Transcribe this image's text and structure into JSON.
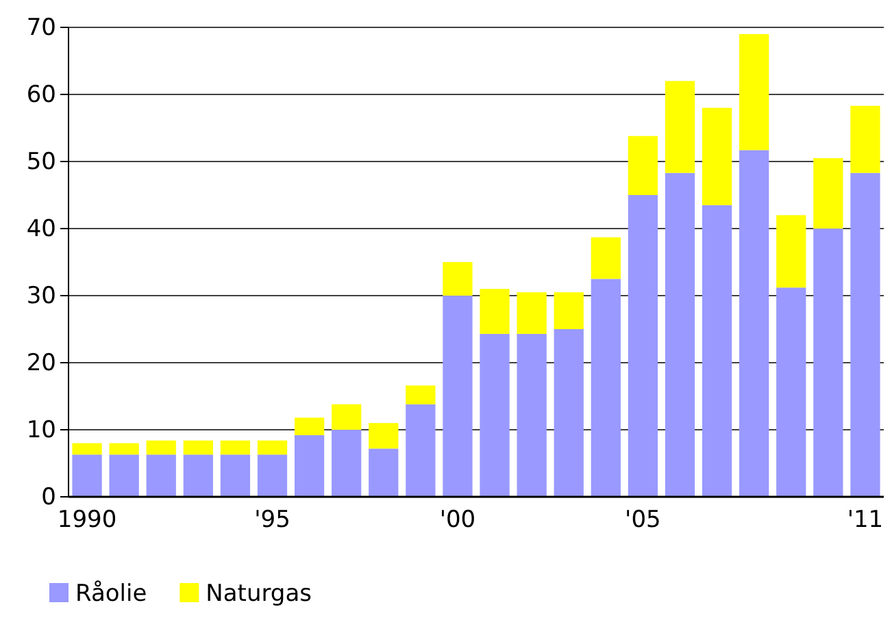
{
  "chart_data": {
    "type": "bar",
    "stacked": true,
    "categories": [
      "1990",
      null,
      null,
      null,
      null,
      "'95",
      null,
      null,
      null,
      null,
      "'00",
      null,
      null,
      null,
      null,
      "'05",
      null,
      null,
      null,
      null,
      null,
      "'11"
    ],
    "series": [
      {
        "name": "Råolie",
        "color": "#9999ff",
        "values": [
          6.3,
          6.3,
          6.3,
          6.3,
          6.3,
          6.3,
          9.2,
          10,
          7.2,
          13.8,
          30,
          24.3,
          24.3,
          25,
          32.5,
          45,
          48.3,
          43.5,
          51.7,
          31.2,
          40,
          48.3
        ]
      },
      {
        "name": "Naturgas",
        "color": "#ffff00",
        "values": [
          1.7,
          1.7,
          2.1,
          2.1,
          2.1,
          2.1,
          2.6,
          3.8,
          3.8,
          2.8,
          5,
          6.7,
          6.2,
          5.5,
          6.2,
          8.8,
          13.7,
          14.5,
          17.3,
          10.8,
          10.5,
          10
        ]
      }
    ],
    "ylim": [
      0,
      70
    ],
    "yticks": [
      0,
      10,
      20,
      30,
      40,
      50,
      60,
      70
    ],
    "grid": "y",
    "legend": "bottom left"
  }
}
